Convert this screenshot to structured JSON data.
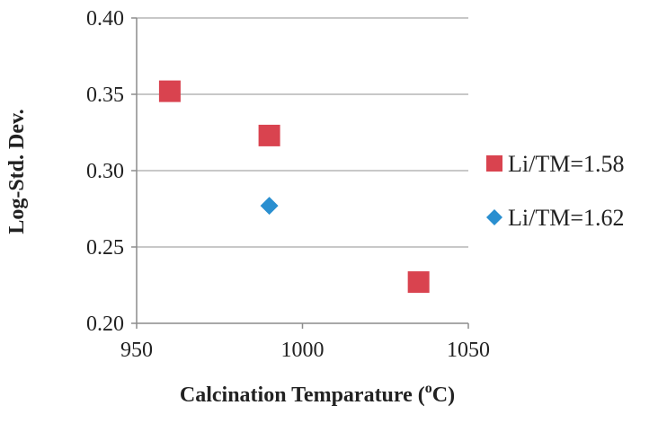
{
  "chart_data": {
    "type": "scatter",
    "xlabel": "Calcination Temparature (",
    "xlabel_sup": "o",
    "xlabel_suffix": "C)",
    "ylabel": "Log-Std. Dev.",
    "xlim": [
      950,
      1050
    ],
    "ylim": [
      0.2,
      0.4
    ],
    "x_ticks": [
      "950",
      "1000",
      "1050"
    ],
    "x_tick_values": [
      950,
      1000,
      1050
    ],
    "y_ticks": [
      "0.20",
      "0.25",
      "0.30",
      "0.35",
      "0.40"
    ],
    "y_tick_values": [
      0.2,
      0.25,
      0.3,
      0.35,
      0.4
    ],
    "grid": "horizontal",
    "legend_position": "right",
    "series": [
      {
        "name": "Li/TM=1.58",
        "marker": "square",
        "color": "#d9434f",
        "points": [
          {
            "x": 960,
            "y": 0.352
          },
          {
            "x": 990,
            "y": 0.323
          },
          {
            "x": 1035,
            "y": 0.227
          }
        ]
      },
      {
        "name": "Li/TM=1.62",
        "marker": "diamond",
        "color": "#2a8fd0",
        "points": [
          {
            "x": 990,
            "y": 0.277
          }
        ]
      }
    ]
  }
}
